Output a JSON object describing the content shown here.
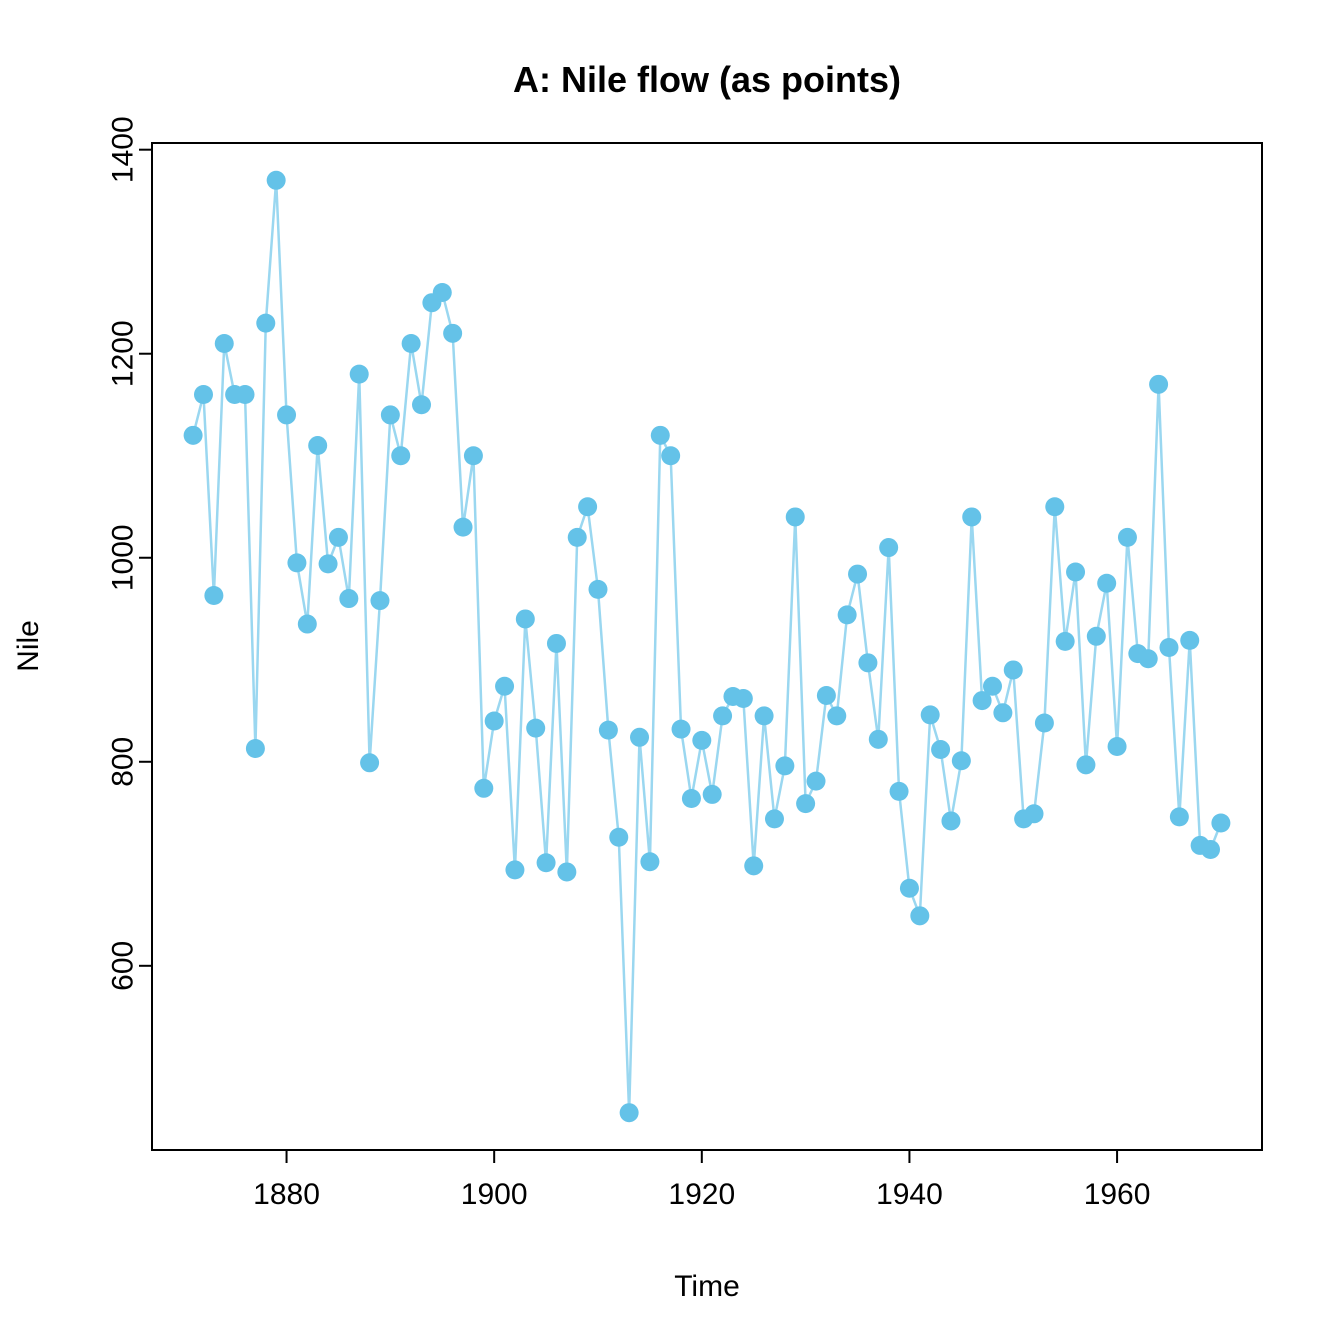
{
  "chart_data": {
    "type": "line",
    "title": "A: Nile flow (as points)",
    "xlabel": "Time",
    "ylabel": "Nile",
    "x_start": 1871,
    "x_end": 1970,
    "xlim": [
      1867.04,
      1973.96
    ],
    "ylim": [
      419.44,
      1406.56
    ],
    "x_ticks": [
      1880,
      1900,
      1920,
      1940,
      1960
    ],
    "y_ticks": [
      600,
      800,
      1000,
      1200,
      1400
    ],
    "grid": false,
    "legend": false,
    "point_color": "#64C2E8",
    "line_color": "#9AD7F0",
    "axis_color": "#000000",
    "background": "#ffffff",
    "series": [
      {
        "name": "Nile",
        "values": [
          1120,
          1160,
          963,
          1210,
          1160,
          1160,
          813,
          1230,
          1370,
          1140,
          995,
          935,
          1110,
          994,
          1020,
          960,
          1180,
          799,
          958,
          1140,
          1100,
          1210,
          1150,
          1250,
          1260,
          1220,
          1030,
          1100,
          774,
          840,
          874,
          694,
          940,
          833,
          701,
          916,
          692,
          1020,
          1050,
          969,
          831,
          726,
          456,
          824,
          702,
          1120,
          1100,
          832,
          764,
          821,
          768,
          845,
          864,
          862,
          698,
          845,
          744,
          796,
          1040,
          759,
          781,
          865,
          845,
          944,
          984,
          897,
          822,
          1010,
          771,
          676,
          649,
          846,
          812,
          742,
          801,
          1040,
          860,
          874,
          848,
          890,
          744,
          749,
          838,
          1050,
          918,
          986,
          797,
          923,
          975,
          815,
          1020,
          906,
          901,
          1170,
          912,
          746,
          919,
          718,
          714,
          740
        ]
      }
    ]
  }
}
